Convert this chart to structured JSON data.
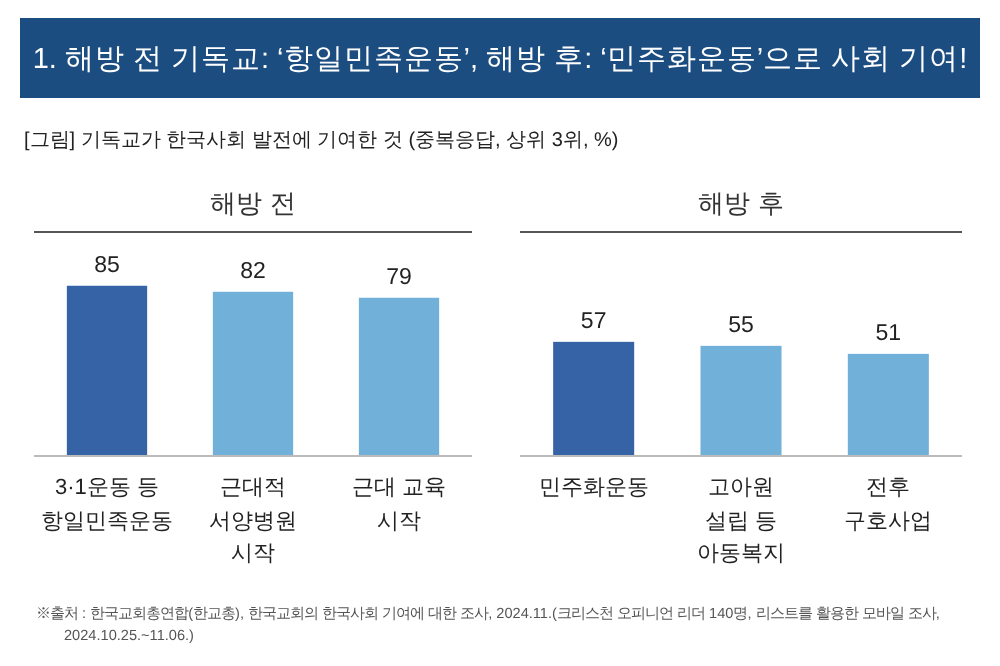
{
  "chart_data": [
    {
      "type": "other",
      "title": "1. 해방 전 기독교: ‘항일민족운동’, 해방 후: ‘민주화운동’으로 사회 기여!",
      "subtitle": "[그림] 기독교가 한국사회 발전에 기여한 것 (중복응답, 상위 3위, %)",
      "annotations": [
        "※출처 : 한국교회총연합(한교총), 한국교회의 한국사회 기여에 대한 조사, 2024.11.(크리스천 오피니언 리더 140명, 리스트를 활용한 모바일 조사, 2024.10.25.~11.06.)"
      ]
    },
    {
      "type": "bar",
      "title": "해방 전",
      "categories": [
        "3·1운동 등 항일민족운동",
        "근대적 서양병원 시작",
        "근대 교육 시작"
      ],
      "values": [
        85,
        82,
        79
      ],
      "colors": [
        "#3563a5",
        "#71b0d8",
        "#71b0d8"
      ],
      "data_labels": true
    },
    {
      "type": "bar",
      "title": "해방 후",
      "categories": [
        "민주화운동",
        "고아원 설립 등 아동복지",
        "전후 구호사업"
      ],
      "values": [
        57,
        55,
        51
      ],
      "colors": [
        "#3563a5",
        "#71b0d8",
        "#71b0d8"
      ],
      "data_labels": true
    }
  ]
}
